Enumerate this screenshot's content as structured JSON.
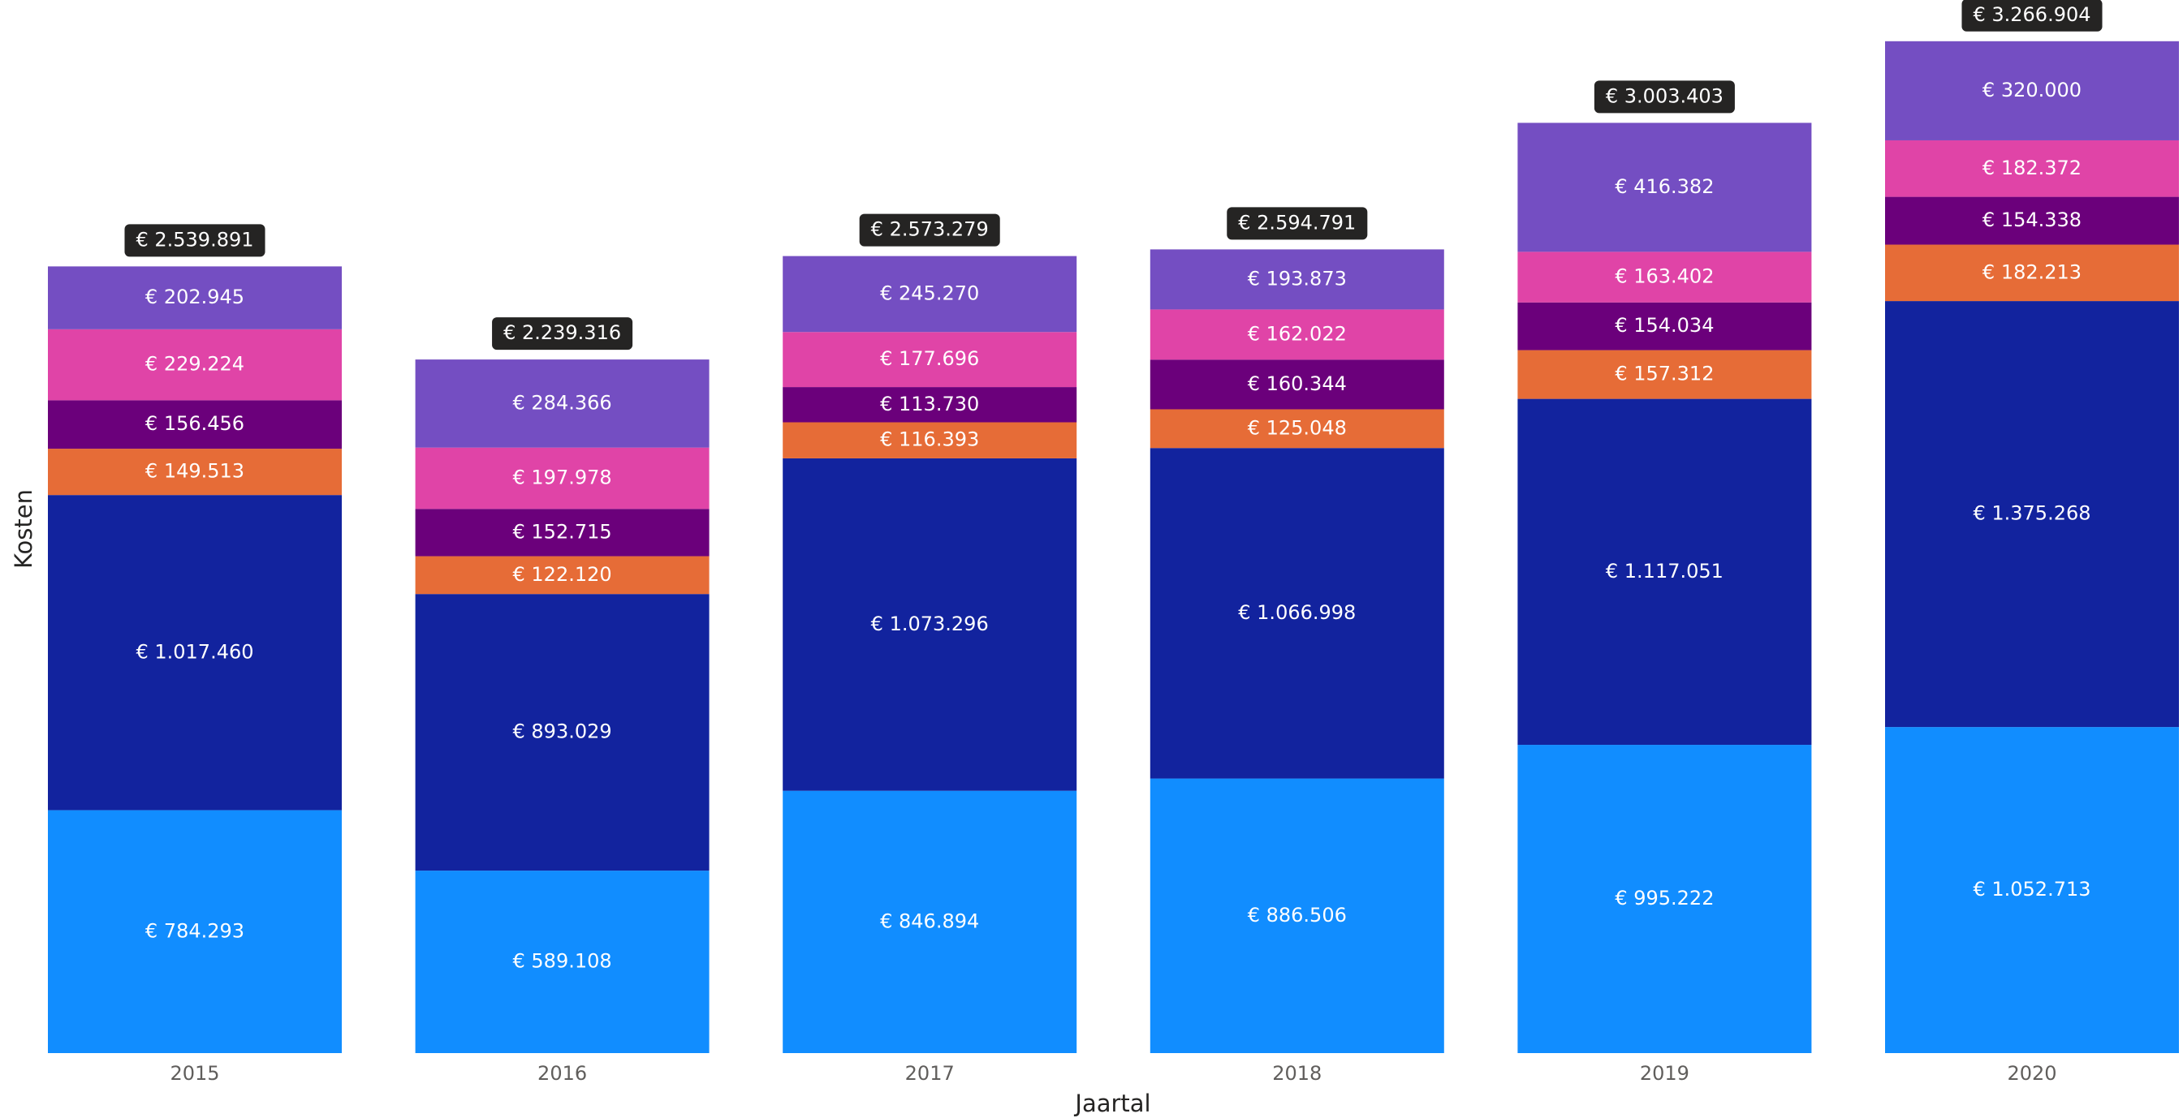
{
  "chart_data": {
    "type": "stacked_bar",
    "xlabel": "Jaartal",
    "ylabel": "Kosten",
    "categories": [
      "2015",
      "2016",
      "2017",
      "2018",
      "2019",
      "2020"
    ],
    "ylim": [
      0,
      3400000
    ],
    "series": [
      {
        "color": "#118dff",
        "values": [
          784293,
          589108,
          846894,
          886506,
          995222,
          1052713
        ],
        "value_labels": [
          "€ 784.293",
          "€ 589.108",
          "€ 846.894",
          "€ 886.506",
          "€ 995.222",
          "€ 1.052.713"
        ]
      },
      {
        "color": "#12239e",
        "values": [
          1017460,
          893029,
          1073296,
          1066998,
          1117051,
          1375268
        ],
        "value_labels": [
          "€ 1.017.460",
          "€ 893.029",
          "€ 1.073.296",
          "€ 1.066.998",
          "€ 1.117.051",
          "€ 1.375.268"
        ]
      },
      {
        "color": "#e66c37",
        "values": [
          149513,
          122120,
          116393,
          125048,
          157312,
          182213
        ],
        "value_labels": [
          "€ 149.513",
          "€ 122.120",
          "€ 116.393",
          "€ 125.048",
          "€ 157.312",
          "€ 182.213"
        ]
      },
      {
        "color": "#6b007b",
        "values": [
          156456,
          152715,
          113730,
          160344,
          154034,
          154338
        ],
        "value_labels": [
          "€ 156.456",
          "€ 152.715",
          "€ 113.730",
          "€ 160.344",
          "€ 154.034",
          "€ 154.338"
        ]
      },
      {
        "color": "#e044a7",
        "values": [
          229224,
          197978,
          177696,
          162022,
          163402,
          182372
        ],
        "value_labels": [
          "€ 229.224",
          "€ 197.978",
          "€ 177.696",
          "€ 162.022",
          "€ 163.402",
          "€ 182.372"
        ]
      },
      {
        "color": "#744ec2",
        "values": [
          202945,
          284366,
          245270,
          193873,
          416382,
          320000
        ],
        "value_labels": [
          "€ 202.945",
          "€ 284.366",
          "€ 245.270",
          "€ 193.873",
          "€ 416.382",
          "€ 320.000"
        ]
      }
    ],
    "totals": [
      2539891,
      2239316,
      2573279,
      2594791,
      3003403,
      3266904
    ],
    "total_labels": [
      "€ 2.539.891",
      "€ 2.239.316",
      "€ 2.573.279",
      "€ 2.594.791",
      "€ 3.003.403",
      "€ 3.266.904"
    ]
  }
}
